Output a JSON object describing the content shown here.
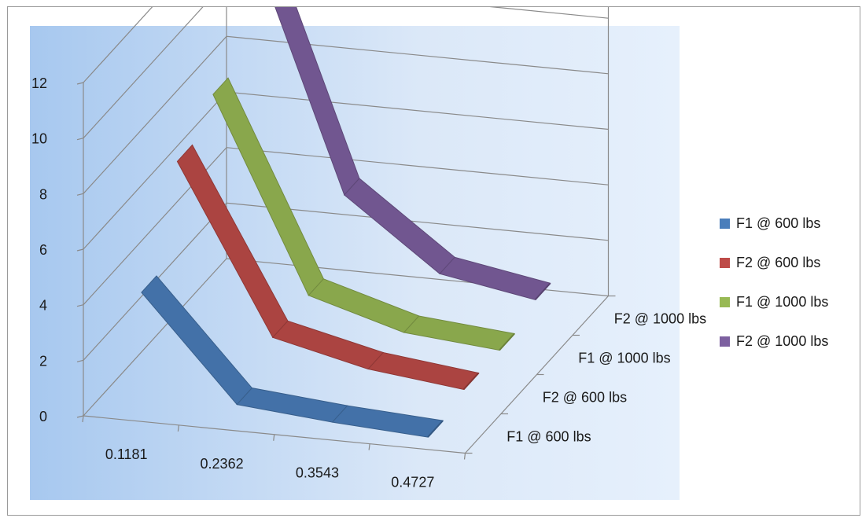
{
  "chart_data": {
    "type": "line",
    "subtype": "3d-line",
    "title": "",
    "xlabel": "",
    "ylabel": "",
    "ylim": [
      0,
      12
    ],
    "y_ticks": [
      "0",
      "2",
      "4",
      "6",
      "8",
      "10",
      "12"
    ],
    "categories": [
      "0.1181",
      "0.2362",
      "0.3543",
      "0.4727"
    ],
    "depth_categories": [
      "F1 @ 600 lbs",
      "F2 @ 600 lbs",
      "F1 @ 1000 lbs",
      "F2 @ 1000 lbs"
    ],
    "series": [
      {
        "name": "F1 @ 600 lbs",
        "color": "#4a7ebb",
        "values": [
          4.2,
          0.5,
          0.2,
          0.0
        ]
      },
      {
        "name": "F2 @ 600 lbs",
        "color": "#be4b48",
        "values": [
          7.5,
          1.5,
          0.7,
          0.3
        ]
      },
      {
        "name": "F1 @ 1000 lbs",
        "color": "#98b954",
        "values": [
          8.5,
          1.6,
          0.6,
          0.3
        ]
      },
      {
        "name": "F2 @ 1000 lbs",
        "color": "#7d60a0",
        "values": [
          12.8,
          3.8,
          1.3,
          0.7
        ]
      }
    ],
    "grid": true,
    "legend_position": "right",
    "background": "gradient light blue"
  }
}
